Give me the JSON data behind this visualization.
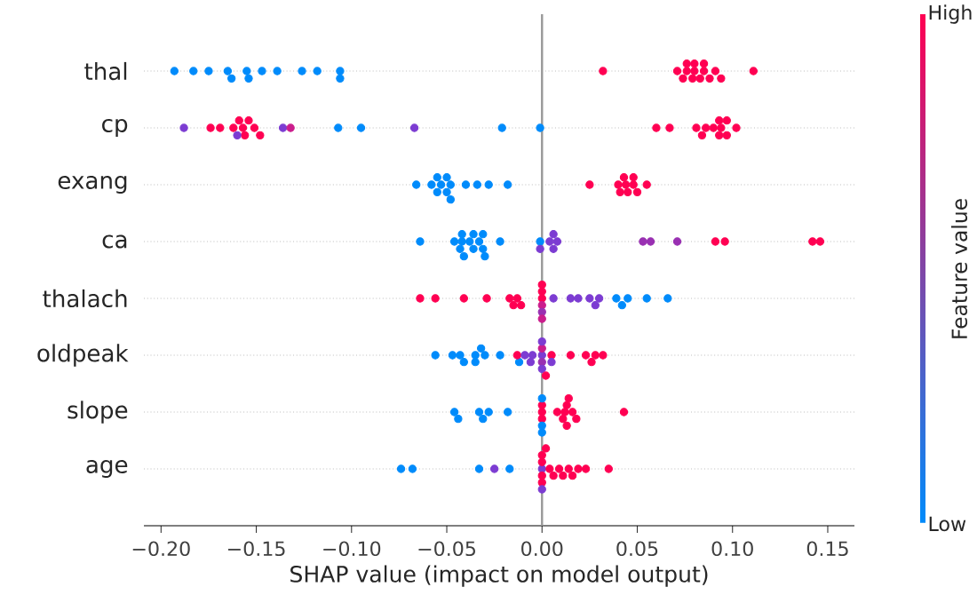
{
  "chart_data": {
    "type": "scatter",
    "orientation": "horizontal",
    "marker": "circle",
    "grid": "y",
    "categories": [
      "thal",
      "cp",
      "exang",
      "ca",
      "thalach",
      "oldpeak",
      "slope",
      "age"
    ],
    "series": [
      {
        "x": [
          "thal",
          "thal",
          "thal",
          "thal",
          "thal",
          "thal",
          "thal",
          "thal",
          "thal",
          "thal",
          "thal",
          "thal",
          "thal",
          "thal",
          "thal",
          "thal",
          "thal",
          "thal",
          "thal",
          "thal",
          "thal",
          "thal",
          "thal",
          "thal",
          "thal",
          "thal",
          "thal",
          "thal"
        ],
        "values": [
          -0.193,
          -0.183,
          -0.175,
          -0.165,
          -0.163,
          -0.155,
          -0.154,
          -0.147,
          -0.139,
          -0.126,
          -0.118,
          -0.106,
          -0.106,
          0.032,
          0.071,
          0.074,
          0.079,
          0.083,
          0.088,
          0.091,
          0.094,
          0.076,
          0.08,
          0.085,
          0.076,
          0.08,
          0.085,
          0.111
        ],
        "colors": [
          "#008bfb",
          "#008bfb",
          "#008bfb",
          "#008bfb",
          "#008bfb",
          "#008bfb",
          "#008bfb",
          "#008bfb",
          "#008bfb",
          "#008bfb",
          "#008bfb",
          "#008bfb",
          "#008bfb",
          "#ff0052",
          "#ff0052",
          "#ff0052",
          "#ff0052",
          "#ff0052",
          "#ff0052",
          "#ff0052",
          "#ff0052",
          "#ff0052",
          "#ff0052",
          "#ff0052",
          "#ff0052",
          "#ff0052",
          "#ff0052",
          "#ff0052"
        ]
      },
      {
        "x": [
          "cp",
          "cp",
          "cp",
          "cp",
          "cp",
          "cp",
          "cp",
          "cp",
          "cp",
          "cp",
          "cp",
          "cp",
          "cp",
          "cp",
          "cp",
          "cp",
          "cp",
          "cp",
          "cp",
          "cp",
          "cp",
          "cp",
          "cp",
          "cp",
          "cp",
          "cp",
          "cp",
          "cp",
          "cp",
          "cp"
        ],
        "values": [
          -0.188,
          -0.174,
          -0.169,
          -0.162,
          -0.159,
          -0.157,
          -0.156,
          -0.154,
          -0.151,
          -0.148,
          -0.16,
          -0.136,
          -0.132,
          -0.107,
          -0.095,
          -0.067,
          -0.021,
          -0.001,
          0.06,
          0.067,
          0.081,
          0.084,
          0.086,
          0.09,
          0.093,
          0.097,
          0.102,
          0.093,
          0.097,
          0.094
        ],
        "colors": [
          "#7c3cd2",
          "#ff0052",
          "#ff0052",
          "#ff0052",
          "#ff0052",
          "#ff0052",
          "#ff0052",
          "#ff0052",
          "#ff0052",
          "#ff0052",
          "#7c3cd2",
          "#7c3cd2",
          "#cb1d8c",
          "#008bfb",
          "#008bfb",
          "#7c3cd2",
          "#008bfb",
          "#008bfb",
          "#ff0052",
          "#ff0052",
          "#ff0052",
          "#ff0052",
          "#ff0052",
          "#ff0052",
          "#ff0052",
          "#ff0052",
          "#ff0052",
          "#ff0052",
          "#ff0052",
          "#ff0052"
        ]
      },
      {
        "x": [
          "exang",
          "exang",
          "exang",
          "exang",
          "exang",
          "exang",
          "exang",
          "exang",
          "exang",
          "exang",
          "exang",
          "exang",
          "exang",
          "exang",
          "exang",
          "exang",
          "exang",
          "exang",
          "exang",
          "exang",
          "exang",
          "exang",
          "exang"
        ],
        "values": [
          -0.066,
          -0.058,
          -0.055,
          -0.053,
          -0.05,
          -0.048,
          -0.055,
          -0.05,
          -0.048,
          -0.04,
          -0.034,
          -0.028,
          -0.018,
          0.025,
          0.04,
          0.043,
          0.045,
          0.048,
          0.05,
          0.041,
          0.044,
          0.048,
          0.055
        ],
        "colors": [
          "#008bfb",
          "#008bfb",
          "#008bfb",
          "#008bfb",
          "#008bfb",
          "#008bfb",
          "#008bfb",
          "#008bfb",
          "#008bfb",
          "#008bfb",
          "#008bfb",
          "#008bfb",
          "#008bfb",
          "#ff0052",
          "#ff0052",
          "#ff0052",
          "#ff0052",
          "#ff0052",
          "#ff0052",
          "#ff0052",
          "#ff0052",
          "#ff0052",
          "#ff0052"
        ]
      },
      {
        "x": [
          "ca",
          "ca",
          "ca",
          "ca",
          "ca",
          "ca",
          "ca",
          "ca",
          "ca",
          "ca",
          "ca",
          "ca",
          "ca",
          "ca",
          "ca",
          "ca",
          "ca",
          "ca",
          "ca",
          "ca",
          "ca",
          "ca",
          "ca",
          "ca",
          "ca",
          "ca",
          "ca"
        ],
        "values": [
          -0.064,
          -0.046,
          -0.043,
          -0.041,
          -0.038,
          -0.036,
          -0.033,
          -0.031,
          -0.042,
          -0.036,
          -0.03,
          -0.042,
          -0.031,
          -0.022,
          -0.001,
          -0.001,
          0.004,
          0.006,
          0.008,
          0.006,
          0.053,
          0.057,
          0.071,
          0.091,
          0.096,
          0.142,
          0.146
        ],
        "colors": [
          "#008bfb",
          "#008bfb",
          "#008bfb",
          "#008bfb",
          "#008bfb",
          "#008bfb",
          "#008bfb",
          "#008bfb",
          "#008bfb",
          "#008bfb",
          "#008bfb",
          "#008bfb",
          "#008bfb",
          "#008bfb",
          "#008bfb",
          "#7c3cd2",
          "#7c3cd2",
          "#7c3cd2",
          "#7c3cd2",
          "#7c3cd2",
          "#9930b2",
          "#9930b2",
          "#9930b2",
          "#ff0052",
          "#ff0052",
          "#ff0052",
          "#ff0052"
        ]
      },
      {
        "x": [
          "thalach",
          "thalach",
          "thalach",
          "thalach",
          "thalach",
          "thalach",
          "thalach",
          "thalach",
          "thalach",
          "thalach",
          "thalach",
          "thalach",
          "thalach",
          "thalach",
          "thalach",
          "thalach",
          "thalach",
          "thalach",
          "thalach",
          "thalach",
          "thalach",
          "thalach",
          "thalach",
          "thalach",
          "thalach"
        ],
        "values": [
          -0.064,
          -0.056,
          -0.041,
          -0.029,
          -0.017,
          -0.015,
          -0.013,
          -0.011,
          0,
          0,
          0,
          0,
          0,
          0,
          0.006,
          0.015,
          0.019,
          0.025,
          0.028,
          0.03,
          0.039,
          0.042,
          0.045,
          0.055,
          0.066
        ],
        "colors": [
          "#ff0052",
          "#ff0052",
          "#ff0052",
          "#ff0052",
          "#ff0052",
          "#ff0052",
          "#ff0052",
          "#ff0052",
          "#ff0052",
          "#cb1d8c",
          "#ff0052",
          "#9930b2",
          "#ff0052",
          "#cb1d8c",
          "#7c3cd2",
          "#7c3cd2",
          "#7c3cd2",
          "#7c3cd2",
          "#7c3cd2",
          "#7c3cd2",
          "#008bfb",
          "#008bfb",
          "#008bfb",
          "#008bfb",
          "#008bfb"
        ]
      },
      {
        "x": [
          "oldpeak",
          "oldpeak",
          "oldpeak",
          "oldpeak",
          "oldpeak",
          "oldpeak",
          "oldpeak",
          "oldpeak",
          "oldpeak",
          "oldpeak",
          "oldpeak",
          "oldpeak",
          "oldpeak",
          "oldpeak",
          "oldpeak",
          "oldpeak",
          "oldpeak",
          "oldpeak",
          "oldpeak",
          "oldpeak",
          "oldpeak",
          "oldpeak",
          "oldpeak",
          "oldpeak",
          "oldpeak",
          "oldpeak",
          "oldpeak"
        ],
        "values": [
          -0.056,
          -0.047,
          -0.043,
          -0.041,
          -0.035,
          -0.035,
          -0.032,
          -0.03,
          -0.022,
          -0.012,
          -0.013,
          -0.009,
          -0.006,
          -0.005,
          0,
          0,
          0,
          0,
          0,
          0.002,
          0.005,
          0.005,
          0.015,
          0.023,
          0.026,
          0.028,
          0.032
        ],
        "colors": [
          "#008bfb",
          "#008bfb",
          "#008bfb",
          "#008bfb",
          "#008bfb",
          "#008bfb",
          "#008bfb",
          "#008bfb",
          "#008bfb",
          "#008bfb",
          "#ff0052",
          "#7c3cd2",
          "#7c3cd2",
          "#7c3cd2",
          "#7c3cd2",
          "#9930b2",
          "#cb1d8c",
          "#7c3cd2",
          "#7c3cd2",
          "#ff0052",
          "#ff0052",
          "#7c3cd2",
          "#ff0052",
          "#ff0052",
          "#ff0052",
          "#ff0052",
          "#ff0052"
        ]
      },
      {
        "x": [
          "slope",
          "slope",
          "slope",
          "slope",
          "slope",
          "slope",
          "slope",
          "slope",
          "slope",
          "slope",
          "slope",
          "slope",
          "slope",
          "slope",
          "slope",
          "slope",
          "slope",
          "slope",
          "slope",
          "slope",
          "slope"
        ],
        "values": [
          -0.046,
          -0.044,
          -0.033,
          -0.031,
          -0.028,
          -0.018,
          0,
          0,
          0,
          0,
          0,
          0,
          0.008,
          0.011,
          0.013,
          0.016,
          0.018,
          0.012,
          0.014,
          0.013,
          0.043
        ],
        "colors": [
          "#008bfb",
          "#008bfb",
          "#008bfb",
          "#008bfb",
          "#008bfb",
          "#008bfb",
          "#ff0052",
          "#ff0052",
          "#ff0052",
          "#008bfb",
          "#008bfb",
          "#008bfb",
          "#ff0052",
          "#ff0052",
          "#ff0052",
          "#ff0052",
          "#ff0052",
          "#ff0052",
          "#ff0052",
          "#ff0052",
          "#ff0052"
        ]
      },
      {
        "x": [
          "age",
          "age",
          "age",
          "age",
          "age",
          "age",
          "age",
          "age",
          "age",
          "age",
          "age",
          "age",
          "age",
          "age",
          "age",
          "age",
          "age",
          "age",
          "age",
          "age",
          "age"
        ],
        "values": [
          -0.074,
          -0.068,
          -0.033,
          -0.025,
          -0.017,
          0,
          0,
          0,
          0,
          0,
          0,
          0.002,
          0.004,
          0.006,
          0.009,
          0.011,
          0.014,
          0.016,
          0.019,
          0.023,
          0.035
        ],
        "colors": [
          "#008bfb",
          "#008bfb",
          "#008bfb",
          "#7c3cd2",
          "#008bfb",
          "#7c3cd2",
          "#ff0052",
          "#ff0052",
          "#ff0052",
          "#ff0052",
          "#7c3cd2",
          "#ff0052",
          "#ff0052",
          "#ff0052",
          "#ff0052",
          "#ff0052",
          "#ff0052",
          "#ff0052",
          "#ff0052",
          "#ff0052",
          "#ff0052"
        ]
      }
    ],
    "xlim": [
      -0.209,
      0.164
    ],
    "xticks": [
      {
        "value": -0.2,
        "label": "−0.20"
      },
      {
        "value": -0.15,
        "label": "−0.15"
      },
      {
        "value": -0.1,
        "label": "−0.10"
      },
      {
        "value": -0.05,
        "label": "−0.05"
      },
      {
        "value": 0,
        "label": "0.00"
      },
      {
        "value": 0.05,
        "label": "0.05"
      },
      {
        "value": 0.1,
        "label": "0.10"
      },
      {
        "value": 0.15,
        "label": "0.15"
      }
    ],
    "xlabel": "SHAP value (impact on model output)",
    "ref_lines": [
      {
        "axis": "x",
        "value": 0,
        "color": "#999999"
      }
    ],
    "clabel": "Feature value",
    "annotations": [
      "High",
      "Low"
    ]
  }
}
